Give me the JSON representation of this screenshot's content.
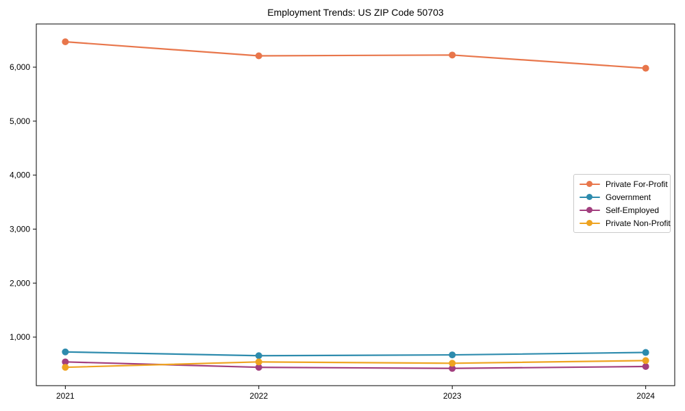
{
  "chart_data": {
    "type": "line",
    "title": "Employment Trends: US ZIP Code 50703",
    "xlabel": "",
    "ylabel": "",
    "x": [
      2021,
      2022,
      2023,
      2024
    ],
    "x_tick_labels": [
      "2021",
      "2022",
      "2023",
      "2024"
    ],
    "y_ticks": [
      1000,
      2000,
      3000,
      4000,
      5000,
      6000
    ],
    "y_tick_labels": [
      "1,000",
      "2,000",
      "3,000",
      "4,000",
      "5,000",
      "6,000"
    ],
    "xlim": [
      2020.85,
      2024.15
    ],
    "ylim": [
      100,
      6800
    ],
    "grid": false,
    "legend_position": "center-right",
    "axis_color": "#000000",
    "background_color": "#ffffff",
    "series": [
      {
        "name": "Private For-Profit",
        "color": "#E8764B",
        "values": [
          6470,
          6210,
          6225,
          5980
        ]
      },
      {
        "name": "Government",
        "color": "#2D8BAD",
        "values": [
          725,
          655,
          670,
          715
        ]
      },
      {
        "name": "Self-Employed",
        "color": "#A23E7E",
        "values": [
          540,
          440,
          420,
          455
        ]
      },
      {
        "name": "Private Non-Profit",
        "color": "#EEA320",
        "values": [
          440,
          540,
          515,
          565
        ]
      }
    ]
  }
}
